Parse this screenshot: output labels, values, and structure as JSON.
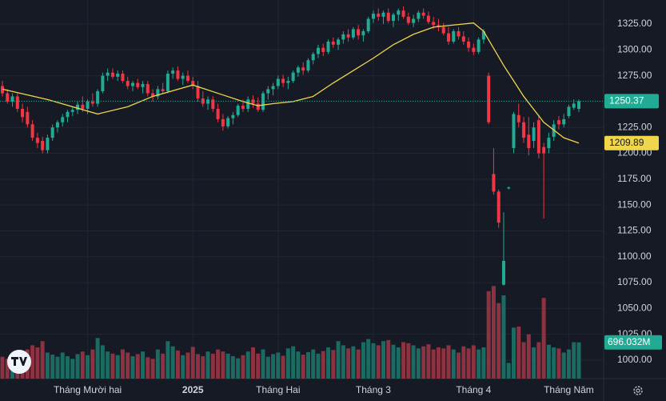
{
  "chart_data": {
    "type": "candlestick",
    "ylim": [
      982.2,
      1348.2
    ],
    "yticks": [
      {
        "value": 1000,
        "label": "1000.00"
      },
      {
        "value": 1025,
        "label": "1025.00"
      },
      {
        "value": 1050,
        "label": "1050.00"
      },
      {
        "value": 1075,
        "label": "1075.00"
      },
      {
        "value": 1100,
        "label": "1100.00"
      },
      {
        "value": 1125,
        "label": "1125.00"
      },
      {
        "value": 1150,
        "label": "1150.00"
      },
      {
        "value": 1175,
        "label": "1175.00"
      },
      {
        "value": 1200,
        "label": "1200.00"
      },
      {
        "value": 1225,
        "label": "1225.00"
      },
      {
        "value": 1250,
        "label": "1250.00"
      },
      {
        "value": 1275,
        "label": "1275.00"
      },
      {
        "value": 1300,
        "label": "1300.00"
      },
      {
        "value": 1325,
        "label": "1325.00"
      }
    ],
    "xlim": [
      0,
      115
    ],
    "xticks": [
      {
        "value": 17,
        "label": "Tháng Mười hai"
      },
      {
        "value": 38,
        "label": "2025"
      },
      {
        "value": 55,
        "label": "Tháng Hai"
      },
      {
        "value": 74,
        "label": "Tháng 3"
      },
      {
        "value": 94,
        "label": "Tháng 4"
      },
      {
        "value": 113,
        "label": "Tháng Năm"
      }
    ],
    "grid": true,
    "up_color": "#22ab94",
    "down_color": "#f23645",
    "ohlc": [
      [
        1265,
        1270,
        1255,
        1258
      ],
      [
        1258,
        1262,
        1248,
        1250
      ],
      [
        1250,
        1258,
        1245,
        1255
      ],
      [
        1255,
        1258,
        1240,
        1243
      ],
      [
        1243,
        1248,
        1230,
        1235
      ],
      [
        1240,
        1245,
        1225,
        1228
      ],
      [
        1228,
        1232,
        1212,
        1215
      ],
      [
        1215,
        1220,
        1205,
        1210
      ],
      [
        1212,
        1216,
        1200,
        1203
      ],
      [
        1203,
        1218,
        1200,
        1215
      ],
      [
        1215,
        1228,
        1212,
        1225
      ],
      [
        1225,
        1232,
        1220,
        1230
      ],
      [
        1230,
        1238,
        1226,
        1235
      ],
      [
        1235,
        1242,
        1230,
        1240
      ],
      [
        1240,
        1245,
        1236,
        1242
      ],
      [
        1242,
        1250,
        1238,
        1247
      ],
      [
        1247,
        1255,
        1240,
        1243
      ],
      [
        1243,
        1252,
        1238,
        1250
      ],
      [
        1250,
        1258,
        1245,
        1248
      ],
      [
        1248,
        1262,
        1245,
        1260
      ],
      [
        1260,
        1278,
        1258,
        1275
      ],
      [
        1275,
        1282,
        1270,
        1278
      ],
      [
        1278,
        1282,
        1272,
        1274
      ],
      [
        1274,
        1280,
        1270,
        1277
      ],
      [
        1277,
        1280,
        1268,
        1270
      ],
      [
        1270,
        1274,
        1262,
        1265
      ],
      [
        1265,
        1270,
        1260,
        1268
      ],
      [
        1268,
        1272,
        1262,
        1264
      ],
      [
        1264,
        1270,
        1258,
        1267
      ],
      [
        1267,
        1270,
        1255,
        1258
      ],
      [
        1258,
        1262,
        1250,
        1255
      ],
      [
        1255,
        1265,
        1252,
        1262
      ],
      [
        1262,
        1268,
        1258,
        1260
      ],
      [
        1260,
        1280,
        1258,
        1277
      ],
      [
        1277,
        1283,
        1272,
        1280
      ],
      [
        1280,
        1284,
        1270,
        1272
      ],
      [
        1272,
        1278,
        1266,
        1275
      ],
      [
        1275,
        1280,
        1268,
        1270
      ],
      [
        1270,
        1274,
        1262,
        1265
      ],
      [
        1265,
        1270,
        1250,
        1253
      ],
      [
        1253,
        1260,
        1245,
        1248
      ],
      [
        1248,
        1255,
        1242,
        1252
      ],
      [
        1252,
        1255,
        1240,
        1243
      ],
      [
        1243,
        1248,
        1230,
        1233
      ],
      [
        1233,
        1238,
        1222,
        1226
      ],
      [
        1226,
        1236,
        1224,
        1234
      ],
      [
        1234,
        1240,
        1228,
        1237
      ],
      [
        1237,
        1248,
        1235,
        1246
      ],
      [
        1246,
        1252,
        1240,
        1243
      ],
      [
        1243,
        1255,
        1240,
        1252
      ],
      [
        1252,
        1256,
        1244,
        1248
      ],
      [
        1248,
        1254,
        1240,
        1242
      ],
      [
        1242,
        1260,
        1240,
        1258
      ],
      [
        1258,
        1265,
        1252,
        1262
      ],
      [
        1262,
        1268,
        1256,
        1265
      ],
      [
        1265,
        1275,
        1262,
        1272
      ],
      [
        1272,
        1276,
        1264,
        1268
      ],
      [
        1268,
        1274,
        1262,
        1270
      ],
      [
        1270,
        1280,
        1268,
        1278
      ],
      [
        1278,
        1285,
        1274,
        1283
      ],
      [
        1283,
        1288,
        1276,
        1280
      ],
      [
        1280,
        1292,
        1278,
        1290
      ],
      [
        1290,
        1298,
        1286,
        1296
      ],
      [
        1296,
        1305,
        1292,
        1302
      ],
      [
        1302,
        1306,
        1294,
        1298
      ],
      [
        1298,
        1310,
        1296,
        1308
      ],
      [
        1308,
        1312,
        1302,
        1305
      ],
      [
        1305,
        1312,
        1300,
        1310
      ],
      [
        1310,
        1318,
        1306,
        1315
      ],
      [
        1315,
        1320,
        1308,
        1312
      ],
      [
        1312,
        1322,
        1310,
        1320
      ],
      [
        1320,
        1324,
        1310,
        1314
      ],
      [
        1314,
        1320,
        1308,
        1318
      ],
      [
        1318,
        1332,
        1316,
        1330
      ],
      [
        1330,
        1338,
        1326,
        1335
      ],
      [
        1335,
        1340,
        1328,
        1332
      ],
      [
        1332,
        1338,
        1325,
        1336
      ],
      [
        1336,
        1340,
        1326,
        1328
      ],
      [
        1328,
        1336,
        1322,
        1334
      ],
      [
        1334,
        1340,
        1328,
        1338
      ],
      [
        1338,
        1342,
        1330,
        1332
      ],
      [
        1332,
        1336,
        1324,
        1326
      ],
      [
        1326,
        1334,
        1322,
        1330
      ],
      [
        1330,
        1338,
        1327,
        1336
      ],
      [
        1336,
        1340,
        1330,
        1333
      ],
      [
        1333,
        1337,
        1325,
        1327
      ],
      [
        1327,
        1332,
        1320,
        1324
      ],
      [
        1324,
        1330,
        1318,
        1322
      ],
      [
        1322,
        1326,
        1314,
        1316
      ],
      [
        1316,
        1322,
        1305,
        1308
      ],
      [
        1308,
        1320,
        1306,
        1318
      ],
      [
        1318,
        1322,
        1310,
        1313
      ],
      [
        1313,
        1318,
        1305,
        1308
      ],
      [
        1308,
        1312,
        1298,
        1302
      ],
      [
        1302,
        1306,
        1295,
        1298
      ],
      [
        1298,
        1312,
        1296,
        1310
      ],
      [
        1310,
        1320,
        1306,
        1318
      ],
      [
        1275,
        1278,
        1228,
        1230
      ],
      [
        1180,
        1205,
        1160,
        1163
      ],
      [
        1163,
        1165,
        1128,
        1133
      ],
      [
        1073,
        1143,
        1072,
        1096
      ],
      [
        1166,
        1168,
        1165,
        1167
      ],
      [
        1205,
        1240,
        1200,
        1238
      ],
      [
        1237,
        1248,
        1225,
        1230
      ],
      [
        1230,
        1235,
        1210,
        1215
      ],
      [
        1218,
        1235,
        1198,
        1205
      ],
      [
        1212,
        1230,
        1205,
        1225
      ],
      [
        1232,
        1237,
        1195,
        1200
      ],
      [
        1206,
        1210,
        1137,
        1200
      ],
      [
        1205,
        1220,
        1200,
        1215
      ],
      [
        1216,
        1232,
        1212,
        1228
      ],
      [
        1232,
        1236,
        1223,
        1228
      ],
      [
        1228,
        1238,
        1225,
        1233
      ],
      [
        1236,
        1247,
        1234,
        1245
      ],
      [
        1244,
        1252,
        1242,
        1248
      ],
      [
        1243,
        1252,
        1240,
        1250.37
      ]
    ],
    "volume": {
      "up_color": "#1c6b62",
      "down_color": "#8c3241",
      "lim": [
        0,
        2000
      ],
      "values": [
        420,
        380,
        450,
        520,
        480,
        560,
        640,
        600,
        720,
        500,
        460,
        420,
        500,
        430,
        380,
        470,
        520,
        450,
        560,
        780,
        640,
        520,
        480,
        450,
        560,
        500,
        430,
        470,
        520,
        410,
        380,
        560,
        480,
        720,
        620,
        540,
        450,
        500,
        610,
        470,
        430,
        520,
        480,
        560,
        520,
        480,
        430,
        390,
        450,
        520,
        600,
        480,
        560,
        420,
        470,
        500,
        440,
        580,
        620,
        520,
        460,
        510,
        560,
        480,
        530,
        600,
        550,
        720,
        640,
        580,
        620,
        560,
        700,
        760,
        680,
        640,
        720,
        740,
        650,
        600,
        700,
        680,
        640,
        580,
        620,
        660,
        560,
        600,
        580,
        640,
        560,
        500,
        620,
        580,
        640,
        560,
        600,
        1680,
        1780,
        1450,
        1600,
        300,
        980,
        1000,
        700,
        850,
        600,
        700,
        1550,
        650,
        600,
        580,
        500,
        560,
        700,
        696.032
      ],
      "value_labels": {
        "115": "696.032M"
      }
    },
    "ma": {
      "color": "#f0d64a",
      "x": [
        0,
        9,
        19,
        25,
        30,
        38,
        43,
        48,
        51,
        54,
        58,
        62,
        66,
        70,
        74,
        78,
        82,
        86,
        90,
        94,
        96,
        100,
        104,
        108,
        112,
        115
      ],
      "values": [
        1262,
        1252,
        1238,
        1245,
        1255,
        1266,
        1258,
        1250,
        1246,
        1248,
        1250,
        1255,
        1268,
        1280,
        1292,
        1305,
        1315,
        1322,
        1324,
        1326,
        1318,
        1285,
        1255,
        1230,
        1215,
        1209.89
      ]
    }
  }
}
